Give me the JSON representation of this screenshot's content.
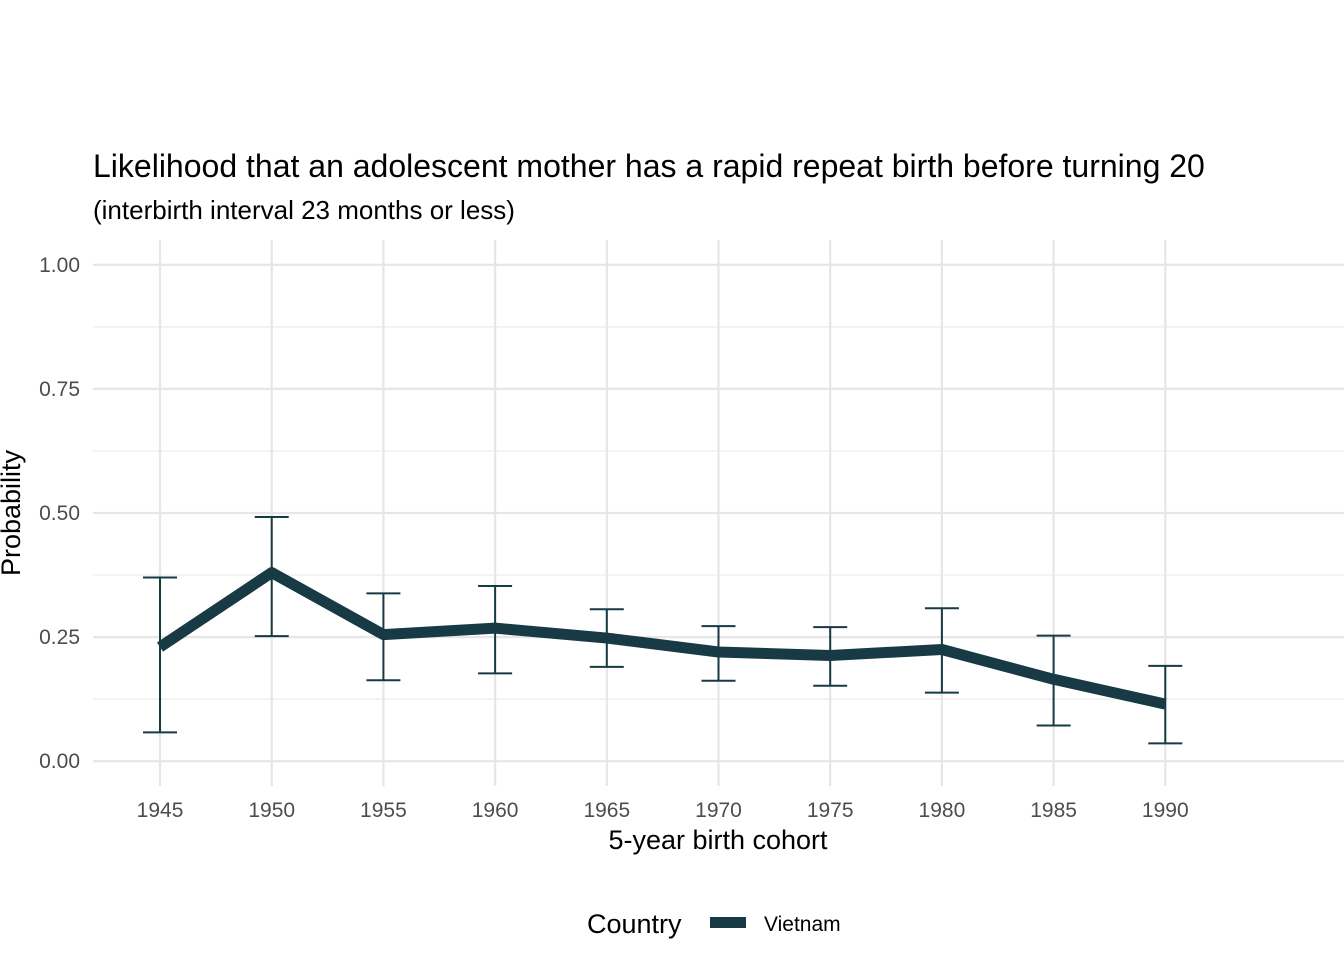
{
  "chart_data": {
    "type": "line",
    "title": "Likelihood that an adolescent mother has a rapid repeat birth before turning 20",
    "subtitle": "(interbirth interval 23 months or less)",
    "xlabel": "5-year birth cohort",
    "ylabel": "Probability",
    "x": [
      1945,
      1950,
      1955,
      1960,
      1965,
      1970,
      1975,
      1980,
      1985,
      1990
    ],
    "xlim": [
      1942,
      1998
    ],
    "ylim": [
      -0.05,
      1.05
    ],
    "yticks": [
      0.0,
      0.25,
      0.5,
      0.75,
      1.0
    ],
    "ytick_labels": [
      "0.00",
      "0.25",
      "0.50",
      "0.75",
      "1.00"
    ],
    "grid": true,
    "legend": {
      "title": "Country",
      "position": "bottom"
    },
    "series": [
      {
        "name": "Vietnam",
        "color": "#173a44",
        "values": [
          0.23,
          0.38,
          0.255,
          0.268,
          0.248,
          0.22,
          0.213,
          0.225,
          0.165,
          0.115
        ],
        "lower": [
          0.058,
          0.252,
          0.163,
          0.177,
          0.19,
          0.162,
          0.152,
          0.138,
          0.072,
          0.036
        ],
        "upper": [
          0.37,
          0.492,
          0.338,
          0.353,
          0.306,
          0.272,
          0.27,
          0.308,
          0.253,
          0.192
        ]
      }
    ]
  }
}
